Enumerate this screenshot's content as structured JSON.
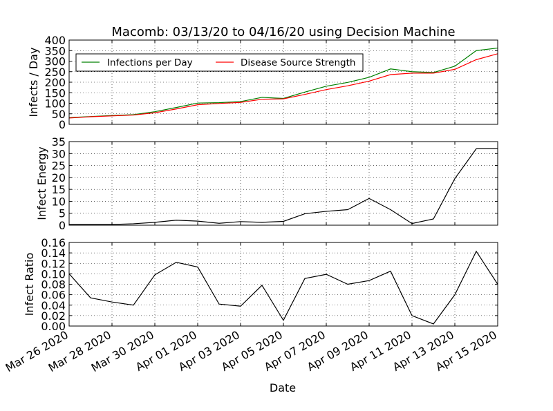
{
  "chart_data": {
    "type": "line",
    "title": "Macomb: 03/13/20 to 04/16/20 using Decision Machine",
    "xlabel": "Date",
    "x": [
      "2020-03-26",
      "2020-03-27",
      "2020-03-28",
      "2020-03-29",
      "2020-03-30",
      "2020-03-31",
      "2020-04-01",
      "2020-04-02",
      "2020-04-03",
      "2020-04-04",
      "2020-04-05",
      "2020-04-06",
      "2020-04-07",
      "2020-04-08",
      "2020-04-09",
      "2020-04-10",
      "2020-04-11",
      "2020-04-12",
      "2020-04-13",
      "2020-04-14",
      "2020-04-15"
    ],
    "xticks": [
      {
        "date": "2020-03-26",
        "label": "Mar 26 2020"
      },
      {
        "date": "2020-03-28",
        "label": "Mar 28 2020"
      },
      {
        "date": "2020-03-30",
        "label": "Mar 30 2020"
      },
      {
        "date": "2020-04-01",
        "label": "Apr 01 2020"
      },
      {
        "date": "2020-04-03",
        "label": "Apr 03 2020"
      },
      {
        "date": "2020-04-05",
        "label": "Apr 05 2020"
      },
      {
        "date": "2020-04-07",
        "label": "Apr 07 2020"
      },
      {
        "date": "2020-04-09",
        "label": "Apr 09 2020"
      },
      {
        "date": "2020-04-11",
        "label": "Apr 11 2020"
      },
      {
        "date": "2020-04-13",
        "label": "Apr 13 2020"
      },
      {
        "date": "2020-04-15",
        "label": "Apr 15 2020"
      }
    ],
    "xlim": [
      "2020-03-26",
      "2020-04-15"
    ],
    "grid": true,
    "panels": [
      {
        "ylabel": "Infects / Day",
        "ylim": [
          0,
          400
        ],
        "yticks": [
          "0",
          "50",
          "100",
          "150",
          "200",
          "250",
          "300",
          "350",
          "400"
        ],
        "legend": "upper-left",
        "legend_columns": 2,
        "series": [
          {
            "name": "Infections per Day",
            "color": "#008000",
            "values": [
              32,
              37,
              42,
              46,
              60,
              80,
              101,
              103,
              108,
              128,
              123,
              153,
              181,
              199,
              223,
              263,
              250,
              246,
              276,
              350,
              362
            ]
          },
          {
            "name": "Disease Source Strength",
            "color": "#ff0000",
            "values": [
              30,
              36,
              40,
              44,
              55,
              73,
              93,
              99,
              104,
              119,
              121,
              142,
              165,
              183,
              205,
              236,
              243,
              243,
              261,
              307,
              335
            ]
          }
        ]
      },
      {
        "ylabel": "Infect Energy",
        "ylim": [
          0,
          35
        ],
        "yticks": [
          "0",
          "5",
          "10",
          "15",
          "20",
          "25",
          "30",
          "35"
        ],
        "series": [
          {
            "color": "#000000",
            "values": [
              0.3,
              0.3,
              0.3,
              0.6,
              1.2,
              2.1,
              1.7,
              0.8,
              1.5,
              1.2,
              1.6,
              4.8,
              5.8,
              6.5,
              11.2,
              6.5,
              0.7,
              2.6,
              19.5,
              32.0,
              32.0
            ]
          }
        ]
      },
      {
        "ylabel": "Infect Ratio",
        "ylim": [
          0,
          0.16
        ],
        "yticks": [
          "0.00",
          "0.02",
          "0.04",
          "0.06",
          "0.08",
          "0.10",
          "0.12",
          "0.14",
          "0.16"
        ],
        "series": [
          {
            "color": "#000000",
            "values": [
              0.1,
              0.054,
              0.046,
              0.04,
              0.098,
              0.122,
              0.113,
              0.042,
              0.038,
              0.078,
              0.011,
              0.091,
              0.099,
              0.08,
              0.087,
              0.105,
              0.02,
              0.004,
              0.06,
              0.143,
              0.08
            ]
          }
        ]
      }
    ]
  }
}
